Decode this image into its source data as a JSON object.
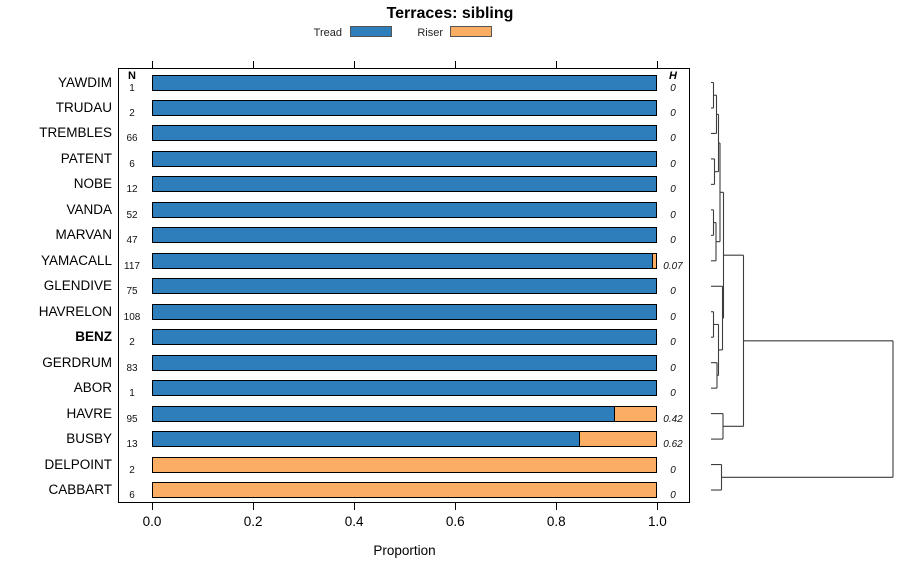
{
  "chart_data": {
    "type": "bar",
    "orientation": "horizontal",
    "stacked": true,
    "title": "Terraces: sibling",
    "xlabel": "Proportion",
    "xlim": [
      0,
      1.05
    ],
    "xticks": [
      "0.0",
      "0.2",
      "0.4",
      "0.6",
      "0.8",
      "1.0"
    ],
    "xtick_values": [
      0,
      0.2,
      0.4,
      0.6,
      0.8,
      1.0
    ],
    "grid": false,
    "legend_position": "top",
    "legend": [
      {
        "label": "Tread",
        "color": "#2E7EBB"
      },
      {
        "label": "Riser",
        "color": "#FBAD63"
      }
    ],
    "columns": {
      "n_header": "N",
      "h_header": "H"
    },
    "categories": [
      "YAWDIM",
      "TRUDAU",
      "TREMBLES",
      "PATENT",
      "NOBE",
      "VANDA",
      "MARVAN",
      "YAMACALL",
      "GLENDIVE",
      "HAVRELON",
      "BENZ",
      "GERDRUM",
      "ABOR",
      "HAVRE",
      "BUSBY",
      "DELPOINT",
      "CABBART"
    ],
    "bold_category": "BENZ",
    "n": [
      1,
      2,
      66,
      6,
      12,
      52,
      47,
      117,
      75,
      108,
      2,
      83,
      1,
      95,
      13,
      2,
      6
    ],
    "h": [
      "0",
      "0",
      "0",
      "0",
      "0",
      "0",
      "0",
      "0.07",
      "0",
      "0",
      "0",
      "0",
      "0",
      "0.42",
      "0.62",
      "0",
      "0"
    ],
    "series": [
      {
        "name": "Tread",
        "color": "#2E7EBB",
        "values": [
          1,
          1,
          1,
          1,
          1,
          1,
          1,
          0.9915,
          1,
          1,
          1,
          1,
          1,
          0.916,
          0.846,
          0,
          0
        ]
      },
      {
        "name": "Riser",
        "color": "#FBAD63",
        "values": [
          0,
          0,
          0,
          0,
          0,
          0,
          0,
          0.0085,
          0,
          0,
          0,
          0,
          0,
          0.084,
          0.154,
          1,
          1
        ]
      }
    ],
    "dendrogram": {
      "leaf_order": [
        "YAWDIM",
        "TRUDAU",
        "TREMBLES",
        "PATENT",
        "NOBE",
        "VANDA",
        "MARVAN",
        "YAMACALL",
        "GLENDIVE",
        "HAVRELON",
        "BENZ",
        "GERDRUM",
        "ABOR",
        "HAVRE",
        "BUSBY",
        "DELPOINT",
        "CABBART"
      ],
      "merges": [
        {
          "id": "M1",
          "a": "L0",
          "b": "L1",
          "h": 2.5
        },
        {
          "id": "M2",
          "a": "M1",
          "b": "L2",
          "h": 5.5
        },
        {
          "id": "M3",
          "a": "L3",
          "b": "L4",
          "h": 3.5
        },
        {
          "id": "M4",
          "a": "M2",
          "b": "M3",
          "h": 7.5
        },
        {
          "id": "M5",
          "a": "L5",
          "b": "L6",
          "h": 2.5
        },
        {
          "id": "M6",
          "a": "M5",
          "b": "L7",
          "h": 5
        },
        {
          "id": "M7",
          "a": "M4",
          "b": "M6",
          "h": 9
        },
        {
          "id": "M8",
          "a": "L9",
          "b": "L10",
          "h": 2.5
        },
        {
          "id": "M9",
          "a": "L11",
          "b": "L12",
          "h": 6
        },
        {
          "id": "M10",
          "a": "M8",
          "b": "M9",
          "h": 7.5
        },
        {
          "id": "M11",
          "a": "L8",
          "b": "M10",
          "h": 11.5
        },
        {
          "id": "M12",
          "a": "M7",
          "b": "M11",
          "h": 12.5
        },
        {
          "id": "M13",
          "a": "L13",
          "b": "L14",
          "h": 12
        },
        {
          "id": "M14",
          "a": "M12",
          "b": "M13",
          "h": 32.5
        },
        {
          "id": "M15",
          "a": "L15",
          "b": "L16",
          "h": 10.5
        },
        {
          "id": "M16",
          "a": "M14",
          "b": "M15",
          "h": 182
        }
      ]
    }
  }
}
